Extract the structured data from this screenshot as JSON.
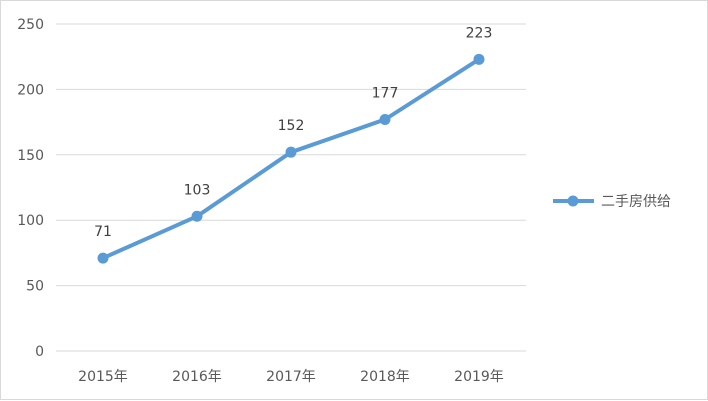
{
  "chart_data": {
    "type": "line",
    "categories": [
      "2015年",
      "2016年",
      "2017年",
      "2018年",
      "2019年"
    ],
    "series": [
      {
        "name": "二手房供给",
        "values": [
          71,
          103,
          152,
          177,
          223
        ],
        "color": "#5b9bd5"
      }
    ],
    "data_labels": [
      "71",
      "103",
      "152",
      "177",
      "223"
    ],
    "y_ticks": [
      "0",
      "50",
      "100",
      "150",
      "200",
      "250"
    ],
    "ylim": [
      0,
      250
    ],
    "grid": true,
    "legend_position": "right",
    "gridline_color": "#d9d9d9",
    "axis_text_color": "#595959"
  }
}
